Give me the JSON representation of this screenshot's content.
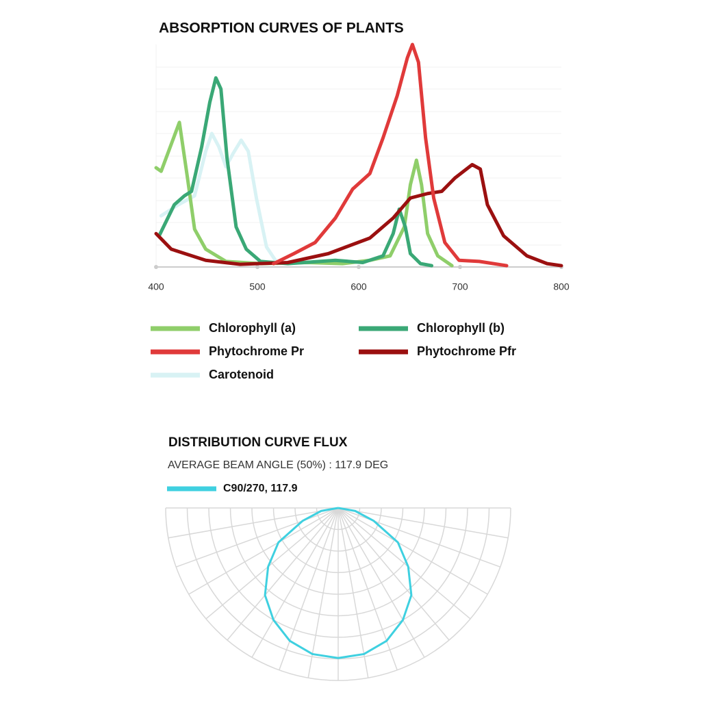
{
  "chart_data": [
    {
      "type": "line",
      "title": "ABSORPTION CURVES OF PLANTS",
      "xlim": [
        400,
        800
      ],
      "xticks": [
        400,
        500,
        600,
        700,
        800
      ],
      "ylim": [
        0,
        100
      ],
      "series": [
        {
          "name": "Chlorophyll (a)",
          "color": "#8fce6a",
          "x": [
            400,
            405,
            423,
            431,
            438,
            449,
            469,
            503,
            550,
            584,
            611,
            631,
            645,
            651,
            657,
            662,
            668,
            678,
            692
          ],
          "values": [
            44.6,
            43,
            65,
            40,
            17,
            8,
            2.5,
            1.5,
            2,
            1.5,
            3,
            5,
            18,
            37,
            48,
            37,
            15,
            5,
            0.6
          ]
        },
        {
          "name": "Chlorophyll (b)",
          "color": "#3aa876",
          "x": [
            403,
            418,
            428,
            435,
            445,
            453,
            459,
            464,
            470,
            479,
            489,
            503,
            530,
            577,
            604,
            624,
            634,
            640,
            646,
            651,
            661,
            672
          ],
          "values": [
            14,
            28,
            32,
            34,
            54,
            74,
            85,
            80,
            49,
            18,
            8,
            2.5,
            1.5,
            3,
            2,
            5,
            15,
            26,
            18,
            6,
            1.5,
            0.6
          ]
        },
        {
          "name": "Phytochrome Pr",
          "color": "#e03a3a",
          "x": [
            516,
            536,
            557,
            577,
            594,
            611,
            624,
            638,
            648,
            653,
            659,
            666,
            674,
            685,
            699,
            719,
            746
          ],
          "values": [
            1.5,
            6,
            11,
            22,
            35,
            42,
            58,
            77,
            94,
            100,
            92,
            58,
            31,
            11,
            3,
            2.5,
            0.6
          ]
        },
        {
          "name": "Phytochrome Pfr",
          "color": "#9b1010",
          "x": [
            400,
            415,
            449,
            483,
            530,
            570,
            611,
            634,
            651,
            668,
            682,
            695,
            712,
            720,
            727,
            743,
            766,
            786,
            800
          ],
          "values": [
            15,
            8,
            3,
            1.2,
            2,
            6,
            13,
            22,
            31,
            33,
            34,
            40,
            46,
            44,
            28,
            14,
            5,
            1.5,
            0.6
          ]
        },
        {
          "name": "Carotenoid",
          "color": "#d8f2f4",
          "x": [
            405,
            422,
            438,
            449,
            455,
            462,
            469,
            476,
            484,
            491,
            499,
            509,
            520
          ],
          "values": [
            23,
            28,
            32,
            52,
            60,
            54,
            45,
            51,
            57,
            52,
            31,
            9,
            1.5
          ]
        }
      ]
    },
    {
      "type": "polar",
      "title": "DISTRIBUTION CURVE FLUX",
      "subtitle": "AVERAGE BEAM ANGLE  (50%) : 117.9 DEG",
      "rlim": [
        0,
        100
      ],
      "series": [
        {
          "name": "C90/270, 117.9",
          "color": "#3fd0e0",
          "x": [
            -90,
            -80,
            -70,
            -60,
            -50,
            -40,
            -30,
            -20,
            -10,
            0,
            10,
            20,
            30,
            40,
            50,
            60,
            70,
            80,
            90
          ],
          "values": [
            0,
            10,
            22,
            40,
            53,
            66,
            75,
            82,
            86,
            87,
            86,
            82,
            75,
            66,
            53,
            40,
            22,
            10,
            0
          ]
        }
      ]
    }
  ]
}
